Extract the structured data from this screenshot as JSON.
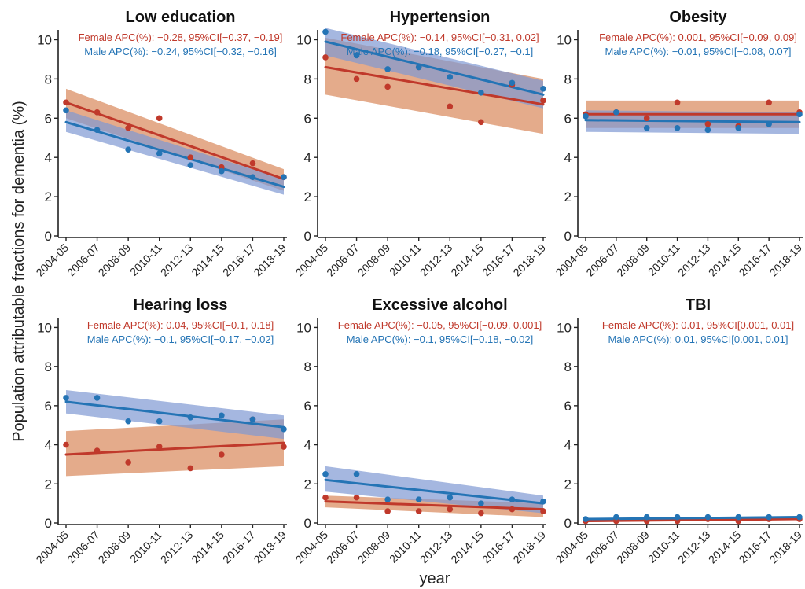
{
  "figure": {
    "ylabel": "Population attributable fractions for dementia (%)",
    "xlabel": "year"
  },
  "colors": {
    "female": "#c0392b",
    "male": "#2474b5",
    "female_band": "#d9875a",
    "male_band": "#7f98d3"
  },
  "chart_data": [
    {
      "type": "line",
      "title": "Low education",
      "x": [
        "2004-05",
        "2006-07",
        "2008-09",
        "2010-11",
        "2012-13",
        "2014-15",
        "2016-17",
        "2018-19"
      ],
      "ylim": [
        0,
        10.5
      ],
      "yticks": [
        0,
        2,
        4,
        6,
        8,
        10
      ],
      "annotations": {
        "female": "Female APC(%): −0.28, 95%CI[−0.37, −0.19]",
        "male": "Male APC(%): −0.24, 95%CI[−0.32, −0.16]"
      },
      "series": [
        {
          "name": "Female",
          "values": [
            6.8,
            6.3,
            5.5,
            6.0,
            4.0,
            3.5,
            3.7,
            3.0
          ],
          "fit": [
            6.8,
            2.9
          ],
          "band_start": [
            6.0,
            7.5
          ],
          "band_end": [
            2.3,
            3.4
          ]
        },
        {
          "name": "Male",
          "values": [
            6.4,
            5.4,
            4.4,
            4.2,
            3.6,
            3.3,
            3.0,
            3.0
          ],
          "fit": [
            5.8,
            2.5
          ],
          "band_start": [
            5.3,
            6.4
          ],
          "band_end": [
            2.1,
            2.9
          ]
        }
      ]
    },
    {
      "type": "line",
      "title": "Hypertension",
      "x": [
        "2004-05",
        "2006-07",
        "2008-09",
        "2010-11",
        "2012-13",
        "2014-15",
        "2016-17",
        "2018-19"
      ],
      "ylim": [
        0,
        10.5
      ],
      "yticks": [
        0,
        2,
        4,
        6,
        8,
        10
      ],
      "annotations": {
        "female": "Female APC(%): −0.14, 95%CI[−0.31, 0.02]",
        "male": "Male APC(%): −0.18, 95%CI[−0.27, −0.1]"
      },
      "series": [
        {
          "name": "Female",
          "values": [
            9.1,
            8.0,
            7.6,
            8.6,
            6.6,
            5.8,
            7.7,
            6.9
          ],
          "fit": [
            8.6,
            6.7
          ],
          "band_start": [
            7.2,
            10.1
          ],
          "band_end": [
            5.2,
            8.0
          ]
        },
        {
          "name": "Male",
          "values": [
            10.4,
            9.2,
            8.5,
            8.6,
            8.1,
            7.3,
            7.8,
            7.5
          ],
          "fit": [
            9.9,
            7.2
          ],
          "band_start": [
            9.2,
            10.6
          ],
          "band_end": [
            6.5,
            7.9
          ]
        }
      ]
    },
    {
      "type": "line",
      "title": "Obesity",
      "x": [
        "2004-05",
        "2006-07",
        "2008-09",
        "2010-11",
        "2012-13",
        "2014-15",
        "2016-17",
        "2018-19"
      ],
      "ylim": [
        0,
        10.5
      ],
      "yticks": [
        0,
        2,
        4,
        6,
        8,
        10
      ],
      "annotations": {
        "female": "Female APC(%): 0.001, 95%CI[−0.09, 0.09]",
        "male": "Male APC(%): −0.01, 95%CI[−0.08, 0.07]"
      },
      "series": [
        {
          "name": "Female",
          "values": [
            6.2,
            6.3,
            6.0,
            6.8,
            5.7,
            5.6,
            6.8,
            6.3
          ],
          "fit": [
            6.2,
            6.2
          ],
          "band_start": [
            5.5,
            6.9
          ],
          "band_end": [
            5.5,
            6.9
          ]
        },
        {
          "name": "Male",
          "values": [
            6.1,
            6.3,
            5.5,
            5.5,
            5.4,
            5.5,
            5.7,
            6.2
          ],
          "fit": [
            5.9,
            5.8
          ],
          "band_start": [
            5.3,
            6.4
          ],
          "band_end": [
            5.2,
            6.3
          ]
        }
      ]
    },
    {
      "type": "line",
      "title": "Hearing loss",
      "x": [
        "2004-05",
        "2006-07",
        "2008-09",
        "2010-11",
        "2012-13",
        "2014-15",
        "2016-17",
        "2018-19"
      ],
      "ylim": [
        0,
        10.5
      ],
      "yticks": [
        0,
        2,
        4,
        6,
        8,
        10
      ],
      "annotations": {
        "female": "Female APC(%): 0.04, 95%CI[−0.1, 0.18]",
        "male": "Male APC(%): −0.1, 95%CI[−0.17, −0.02]"
      },
      "series": [
        {
          "name": "Female",
          "values": [
            4.0,
            3.7,
            3.1,
            3.9,
            2.8,
            3.5,
            5.3,
            3.9
          ],
          "fit": [
            3.5,
            4.1
          ],
          "band_start": [
            2.4,
            4.7
          ],
          "band_end": [
            2.9,
            5.3
          ]
        },
        {
          "name": "Male",
          "values": [
            6.4,
            6.4,
            5.2,
            5.2,
            5.4,
            5.5,
            5.3,
            4.8
          ],
          "fit": [
            6.2,
            4.9
          ],
          "band_start": [
            5.6,
            6.8
          ],
          "band_end": [
            4.3,
            5.5
          ]
        }
      ]
    },
    {
      "type": "line",
      "title": "Excessive alcohol",
      "x": [
        "2004-05",
        "2006-07",
        "2008-09",
        "2010-11",
        "2012-13",
        "2014-15",
        "2016-17",
        "2018-19"
      ],
      "ylim": [
        0,
        10.5
      ],
      "yticks": [
        0,
        2,
        4,
        6,
        8,
        10
      ],
      "annotations": {
        "female": "Female APC(%): −0.05, 95%CI[−0.09, 0.001]",
        "male": "Male APC(%): −0.1, 95%CI[−0.18, −0.02]"
      },
      "series": [
        {
          "name": "Female",
          "values": [
            1.3,
            1.3,
            0.6,
            0.6,
            0.7,
            0.5,
            0.7,
            0.6
          ],
          "fit": [
            1.1,
            0.7
          ],
          "band_start": [
            0.8,
            1.4
          ],
          "band_end": [
            0.3,
            1.0
          ]
        },
        {
          "name": "Male",
          "values": [
            2.5,
            2.5,
            1.2,
            1.2,
            1.3,
            1.0,
            1.2,
            1.1
          ],
          "fit": [
            2.2,
            1.0
          ],
          "band_start": [
            1.6,
            2.9
          ],
          "band_end": [
            0.5,
            1.4
          ]
        }
      ]
    },
    {
      "type": "line",
      "title": "TBI",
      "x": [
        "2004-05",
        "2006-07",
        "2008-09",
        "2010-11",
        "2012-13",
        "2014-15",
        "2016-17",
        "2018-19"
      ],
      "ylim": [
        0,
        10.5
      ],
      "yticks": [
        0,
        2,
        4,
        6,
        8,
        10
      ],
      "annotations": {
        "female": "Female APC(%): 0.01, 95%CI[0.001, 0.01]",
        "male": "Male APC(%): 0.01, 95%CI[0.001, 0.01]"
      },
      "series": [
        {
          "name": "Female",
          "values": [
            0.1,
            0.1,
            0.1,
            0.1,
            0.2,
            0.1,
            0.2,
            0.2
          ],
          "fit": [
            0.1,
            0.2
          ],
          "band_start": [
            0.05,
            0.15
          ],
          "band_end": [
            0.15,
            0.25
          ]
        },
        {
          "name": "Male",
          "values": [
            0.2,
            0.3,
            0.3,
            0.3,
            0.3,
            0.3,
            0.3,
            0.3
          ],
          "fit": [
            0.2,
            0.3
          ],
          "band_start": [
            0.15,
            0.25
          ],
          "band_end": [
            0.25,
            0.35
          ]
        }
      ]
    }
  ]
}
